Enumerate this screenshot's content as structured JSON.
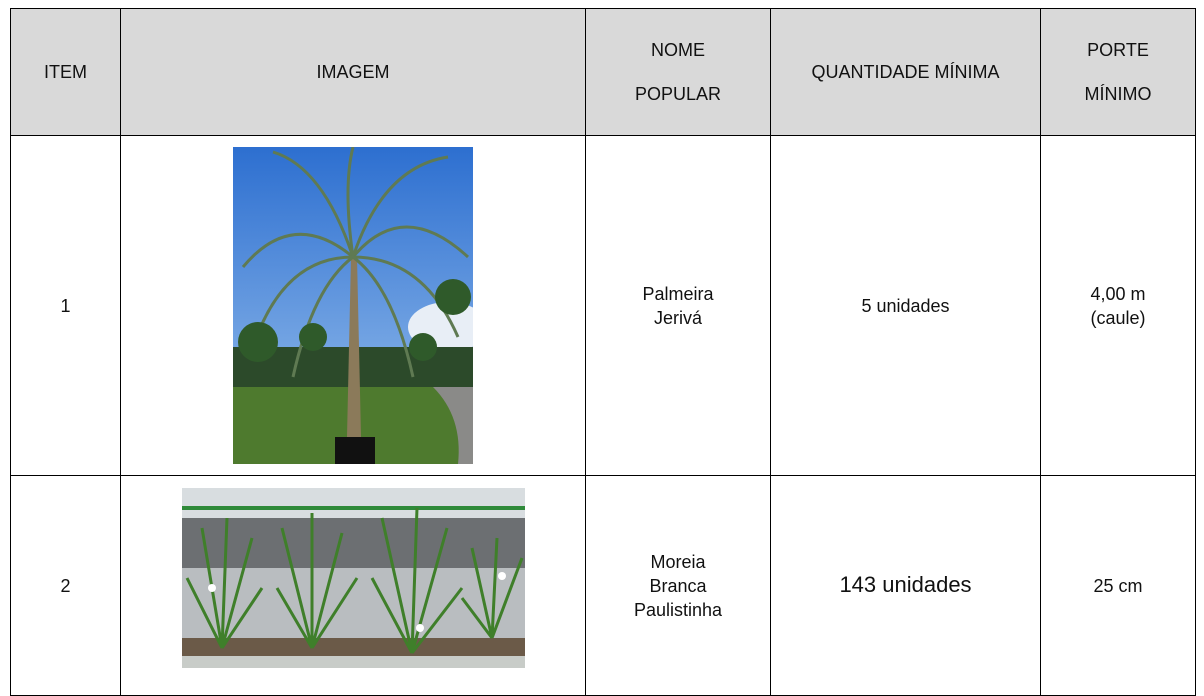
{
  "table": {
    "header": [
      "ITEM",
      "IMAGEM",
      "NOME POPULAR",
      "QUANTIDADE MÍNIMA",
      "PORTE MÍNIMO"
    ],
    "rows": [
      {
        "item": "1",
        "name": "Palmeira Jerivá",
        "quantity": "5 unidades",
        "size": "4,00 m (caule)"
      },
      {
        "item": "2",
        "name": "Moreia Branca Paulistinha",
        "quantity": "143 unidades",
        "size": "25 cm"
      }
    ]
  }
}
